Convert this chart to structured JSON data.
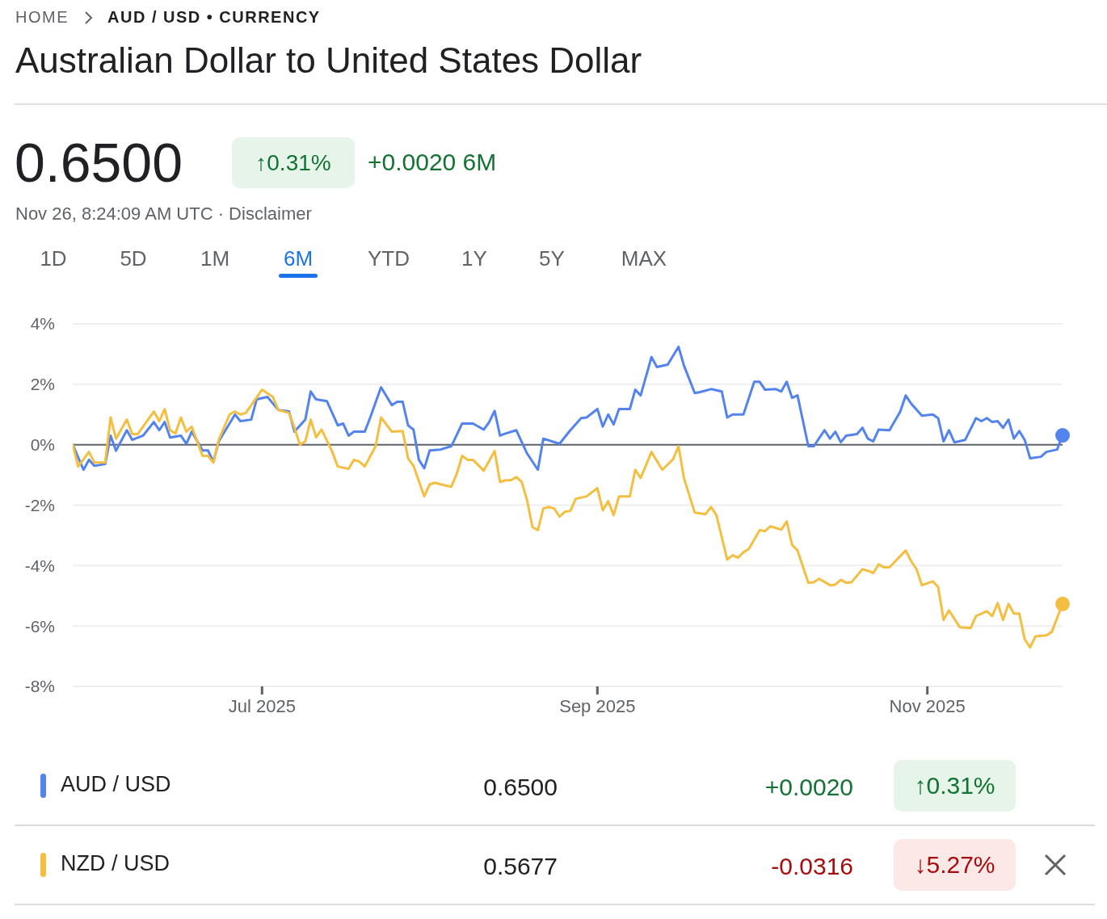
{
  "chart_data": {
    "type": "line",
    "title": "Australian Dollar to United States Dollar",
    "annotations": [
      "HOME",
      "AUD / USD • CURRENCY",
      "0.6500",
      "↑0.31%",
      "+0.0020 6M",
      "Nov 26, 8:24:09 AM UTC · Disclaimer",
      "1D",
      "5D",
      "1M",
      "6M",
      "YTD",
      "1Y",
      "5Y",
      "MAX",
      "0.6500",
      "+0.0020",
      "↑0.31%",
      "0.5677",
      "-0.0316",
      "↓5.27%"
    ],
    "series": [
      {
        "name": "AUD / USD",
        "color": "#5383ec",
        "x": [
          "2025-05-27",
          "2025-05-29",
          "2025-05-30",
          "2025-05-31",
          "2025-06-02",
          "2025-06-03",
          "2025-06-04",
          "2025-06-06",
          "2025-06-07",
          "2025-06-09",
          "2025-06-11",
          "2025-06-12",
          "2025-06-13",
          "2025-06-14",
          "2025-06-16",
          "2025-06-17",
          "2025-06-18",
          "2025-06-20",
          "2025-06-21",
          "2025-06-22",
          "2025-06-23",
          "2025-06-26",
          "2025-06-27",
          "2025-06-29",
          "2025-06-30",
          "2025-07-02",
          "2025-07-04",
          "2025-07-06",
          "2025-07-07",
          "2025-07-09",
          "2025-07-10",
          "2025-07-11",
          "2025-07-13",
          "2025-07-15",
          "2025-07-16",
          "2025-07-17",
          "2025-07-18",
          "2025-07-20",
          "2025-07-21",
          "2025-07-23",
          "2025-07-25",
          "2025-07-26",
          "2025-07-27",
          "2025-07-28",
          "2025-07-29",
          "2025-07-30",
          "2025-07-31",
          "2025-08-01",
          "2025-08-03",
          "2025-08-05",
          "2025-08-07",
          "2025-08-09",
          "2025-08-11",
          "2025-08-12",
          "2025-08-13",
          "2025-08-14",
          "2025-08-15",
          "2025-08-17",
          "2025-08-19",
          "2025-08-21",
          "2025-08-22",
          "2025-08-25",
          "2025-08-27",
          "2025-08-29",
          "2025-08-30",
          "2025-09-01",
          "2025-09-02",
          "2025-09-03",
          "2025-09-04",
          "2025-09-05",
          "2025-09-07",
          "2025-09-08",
          "2025-09-09",
          "2025-09-11",
          "2025-09-12",
          "2025-09-14",
          "2025-09-16",
          "2025-09-17",
          "2025-09-19",
          "2025-09-20",
          "2025-09-22",
          "2025-09-24",
          "2025-09-25",
          "2025-09-26",
          "2025-09-28",
          "2025-09-30",
          "2025-10-01",
          "2025-10-02",
          "2025-10-04",
          "2025-10-05",
          "2025-10-06",
          "2025-10-07",
          "2025-10-08",
          "2025-10-10",
          "2025-10-11",
          "2025-10-13",
          "2025-10-14",
          "2025-10-15",
          "2025-10-16",
          "2025-10-17",
          "2025-10-19",
          "2025-10-20",
          "2025-10-21",
          "2025-10-22",
          "2025-10-23",
          "2025-10-25",
          "2025-10-27",
          "2025-10-28",
          "2025-10-29",
          "2025-10-31",
          "2025-11-02",
          "2025-11-03",
          "2025-11-04",
          "2025-11-05",
          "2025-11-06",
          "2025-11-08",
          "2025-11-10",
          "2025-11-11",
          "2025-11-12",
          "2025-11-13",
          "2025-11-14",
          "2025-11-15",
          "2025-11-16",
          "2025-11-17",
          "2025-11-18",
          "2025-11-19",
          "2025-11-20",
          "2025-11-22",
          "2025-11-23",
          "2025-11-25",
          "2025-11-26"
        ],
        "values": [
          0,
          -0.83,
          -0.5,
          -0.7,
          -0.64,
          0.3,
          -0.2,
          0.48,
          0.16,
          0.3,
          0.75,
          0.48,
          0.75,
          0.24,
          0.3,
          0.03,
          0.43,
          -0.19,
          -0.19,
          -0.56,
          0.11,
          1.0,
          0.78,
          0.83,
          1.5,
          1.58,
          1.15,
          1.1,
          0.43,
          0.83,
          1.76,
          1.5,
          1.44,
          0.64,
          0.7,
          0.3,
          0.43,
          0.43,
          0.9,
          1.9,
          1.31,
          1.42,
          1.42,
          0.64,
          0.5,
          -0.5,
          -0.78,
          -0.19,
          -0.16,
          -0.05,
          0.7,
          0.7,
          0.5,
          0.75,
          1.12,
          0.3,
          0.37,
          0.48,
          -0.29,
          -0.83,
          0.2,
          0.03,
          0.48,
          0.88,
          0.9,
          1.18,
          0.6,
          1.0,
          0.67,
          1.18,
          1.18,
          1.82,
          1.63,
          2.9,
          2.57,
          2.65,
          3.24,
          2.62,
          1.71,
          1.74,
          1.84,
          1.76,
          0.9,
          1.0,
          1.0,
          2.08,
          2.08,
          1.82,
          1.84,
          1.76,
          2.08,
          1.55,
          1.63,
          -0.05,
          -0.05,
          0.48,
          0.2,
          0.43,
          0.08,
          0.3,
          0.35,
          0.56,
          0.2,
          0.11,
          0.5,
          0.48,
          1.1,
          1.63,
          1.36,
          0.96,
          1.0,
          0.88,
          0.11,
          0.48,
          0.08,
          0.16,
          0.88,
          0.78,
          0.88,
          0.75,
          0.78,
          0.56,
          0.83,
          0.2,
          0.45,
          0.16,
          -0.45,
          -0.4,
          -0.24,
          -0.16,
          0.31
        ]
      },
      {
        "name": "NZD / USD",
        "color": "#f4bf41",
        "x": [
          "2025-05-27",
          "2025-05-28",
          "2025-05-30",
          "2025-05-31",
          "2025-06-02",
          "2025-06-03",
          "2025-06-04",
          "2025-06-06",
          "2025-06-07",
          "2025-06-08",
          "2025-06-11",
          "2025-06-12",
          "2025-06-13",
          "2025-06-14",
          "2025-06-15",
          "2025-06-16",
          "2025-06-17",
          "2025-06-18",
          "2025-06-20",
          "2025-06-21",
          "2025-06-22",
          "2025-06-23",
          "2025-06-25",
          "2025-06-26",
          "2025-06-27",
          "2025-06-28",
          "2025-07-01",
          "2025-07-03",
          "2025-07-04",
          "2025-07-06",
          "2025-07-07",
          "2025-07-08",
          "2025-07-09",
          "2025-07-10",
          "2025-07-11",
          "2025-07-12",
          "2025-07-14",
          "2025-07-15",
          "2025-07-17",
          "2025-07-18",
          "2025-07-19",
          "2025-07-20",
          "2025-07-22",
          "2025-07-23",
          "2025-07-25",
          "2025-07-27",
          "2025-07-28",
          "2025-07-29",
          "2025-07-31",
          "2025-08-01",
          "2025-08-02",
          "2025-08-03",
          "2025-08-05",
          "2025-08-06",
          "2025-08-07",
          "2025-08-08",
          "2025-08-09",
          "2025-08-11",
          "2025-08-13",
          "2025-08-14",
          "2025-08-15",
          "2025-08-16",
          "2025-08-17",
          "2025-08-18",
          "2025-08-19",
          "2025-08-20",
          "2025-08-21",
          "2025-08-22",
          "2025-08-23",
          "2025-08-24",
          "2025-08-25",
          "2025-08-26",
          "2025-08-27",
          "2025-08-28",
          "2025-08-30",
          "2025-09-01",
          "2025-09-02",
          "2025-09-03",
          "2025-09-04",
          "2025-09-05",
          "2025-09-07",
          "2025-09-08",
          "2025-09-09",
          "2025-09-11",
          "2025-09-13",
          "2025-09-15",
          "2025-09-16",
          "2025-09-17",
          "2025-09-19",
          "2025-09-21",
          "2025-09-22",
          "2025-09-23",
          "2025-09-25",
          "2025-09-26",
          "2025-09-27",
          "2025-09-28",
          "2025-09-29",
          "2025-10-01",
          "2025-10-02",
          "2025-10-03",
          "2025-10-05",
          "2025-10-06",
          "2025-10-07",
          "2025-10-08",
          "2025-10-10",
          "2025-10-11",
          "2025-10-12",
          "2025-10-14",
          "2025-10-15",
          "2025-10-16",
          "2025-10-17",
          "2025-10-18",
          "2025-10-20",
          "2025-10-21",
          "2025-10-22",
          "2025-10-23",
          "2025-10-24",
          "2025-10-25",
          "2025-10-28",
          "2025-10-29",
          "2025-10-30",
          "2025-10-31",
          "2025-11-02",
          "2025-11-03",
          "2025-11-04",
          "2025-11-05",
          "2025-11-07",
          "2025-11-09",
          "2025-11-10",
          "2025-11-12",
          "2025-11-13",
          "2025-11-14",
          "2025-11-15",
          "2025-11-16",
          "2025-11-17",
          "2025-11-18",
          "2025-11-19",
          "2025-11-20",
          "2025-11-21",
          "2025-11-23",
          "2025-11-24",
          "2025-11-26"
        ],
        "values": [
          0,
          -0.72,
          -0.24,
          -0.59,
          -0.59,
          0.9,
          0.2,
          0.83,
          0.35,
          0.35,
          1.1,
          0.78,
          1.18,
          0.48,
          0.37,
          0.9,
          0.43,
          0.6,
          -0.37,
          -0.37,
          -0.59,
          0.16,
          1.0,
          1.1,
          1.0,
          1.05,
          1.82,
          1.58,
          1.15,
          1.05,
          0.56,
          0,
          0.11,
          0.83,
          0.24,
          0.5,
          -0.24,
          -0.72,
          -0.8,
          -0.5,
          -0.56,
          -0.72,
          -0.05,
          0.9,
          0.43,
          0.45,
          -0.45,
          -0.7,
          -1.71,
          -1.31,
          -1.26,
          -1.31,
          -1.39,
          -0.96,
          -0.37,
          -0.5,
          -0.5,
          -0.86,
          -0.21,
          -1.23,
          -1.18,
          -1.18,
          -1.07,
          -1.23,
          -1.84,
          -2.73,
          -2.83,
          -2.11,
          -2.06,
          -2.11,
          -2.38,
          -2.22,
          -2.19,
          -1.79,
          -1.71,
          -1.44,
          -2.17,
          -1.87,
          -2.33,
          -1.71,
          -1.71,
          -0.83,
          -1.1,
          -0.24,
          -0.83,
          -0.48,
          -0.05,
          -1.1,
          -2.25,
          -2.3,
          -2.06,
          -2.33,
          -3.8,
          -3.66,
          -3.74,
          -3.56,
          -3.45,
          -2.83,
          -2.86,
          -2.7,
          -2.81,
          -2.54,
          -3.32,
          -3.5,
          -4.57,
          -4.55,
          -4.44,
          -4.65,
          -4.63,
          -4.47,
          -4.57,
          -4.55,
          -4.12,
          -4.17,
          -4.25,
          -3.96,
          -4.06,
          -4.06,
          -3.5,
          -3.85,
          -4.12,
          -4.65,
          -4.52,
          -4.71,
          -5.8,
          -5.48,
          -6.04,
          -6.07,
          -5.67,
          -5.51,
          -5.67,
          -5.24,
          -5.8,
          -5.27,
          -5.59,
          -5.59,
          -6.44,
          -6.71,
          -6.34,
          -6.31,
          -6.2,
          -5.27
        ]
      }
    ],
    "xlim": [
      "2025-05-27",
      "2025-11-26"
    ],
    "xticks": [
      {
        "value": "2025-07-01",
        "label": "Jul 2025"
      },
      {
        "value": "2025-09-01",
        "label": "Sep 2025"
      },
      {
        "value": "2025-11-01",
        "label": "Nov 2025"
      }
    ],
    "ylim": [
      -8,
      4
    ],
    "yticks": [
      {
        "value": -8,
        "label": "-8%"
      },
      {
        "value": -6,
        "label": "-6%"
      },
      {
        "value": -4,
        "label": "-4%"
      },
      {
        "value": -2,
        "label": "-2%"
      },
      {
        "value": 0,
        "label": "0%"
      },
      {
        "value": 2,
        "label": "2%"
      },
      {
        "value": 4,
        "label": "4%"
      }
    ],
    "ref_lines": [
      {
        "axis": "y",
        "value": 0,
        "color": "#5f6368"
      }
    ],
    "grid": "y",
    "legend": "bottom",
    "line_style": "solid"
  }
}
